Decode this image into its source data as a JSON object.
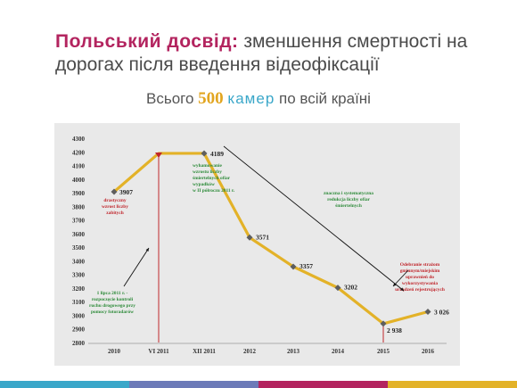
{
  "title": {
    "accent": "Польський досвід:",
    "rest": " зменшення смертності на дорогах після введення відеофіксації"
  },
  "subtitle": {
    "before": "Всього ",
    "number": "500",
    "cameras": "камер",
    "after": " по всій країні"
  },
  "colors": {
    "accent": "#b3245f",
    "line": "#e3b228",
    "marker": "#5e5e5e",
    "green_text": "#2e8b3a",
    "red_text": "#c0262c",
    "panel": "#e9e9e9"
  },
  "chart_data": {
    "type": "line",
    "categories": [
      "2010",
      "VI 2011",
      "XII 2011",
      "2012",
      "2013",
      "2014",
      "2015",
      "2016"
    ],
    "values": [
      3907,
      4189,
      4189,
      3571,
      3357,
      3202,
      2938,
      3026
    ],
    "point_labels": [
      "3907",
      "",
      "4189",
      "3571",
      "3357",
      "3202",
      "2 938",
      "3 026"
    ],
    "y_ticks": [
      "2800",
      "2900",
      "3000",
      "3100",
      "3200",
      "3300",
      "3400",
      "3500",
      "3600",
      "3700",
      "3800",
      "3900",
      "4000",
      "4100",
      "4200",
      "4300"
    ],
    "ylim": [
      2800,
      4300
    ],
    "vertical_markers": [
      "VI 2011",
      "2015"
    ],
    "annotations": [
      {
        "id": "deaths-growth",
        "text": [
          "drastyczny",
          "wzrost liczby",
          "zabitych"
        ],
        "color": "red"
      },
      {
        "id": "2011-half",
        "text": [
          "wyhamowanie",
          "wzrostu liczby",
          "śmiertelnych ofiar",
          "wypadków",
          "w II półroczu 2011 r."
        ],
        "color": "green"
      },
      {
        "id": "systematic-reduction",
        "text": [
          "znaczna i systematyczna",
          "redukcja liczby ofiar",
          "śmiertelnych"
        ],
        "color": "green"
      },
      {
        "id": "control-start",
        "text": [
          "1 lipca 2011 r. -",
          "rozpoczęcie kontroli",
          "ruchu drogowego przy",
          "pomocy fotoradarów"
        ],
        "color": "green"
      },
      {
        "id": "rights-removed",
        "text": [
          "Odebranie strażom",
          "gminnym/miejskim",
          "uprawnień do",
          "wykorzystywania",
          "urządzeń rejestrujących"
        ],
        "color": "red"
      }
    ]
  }
}
